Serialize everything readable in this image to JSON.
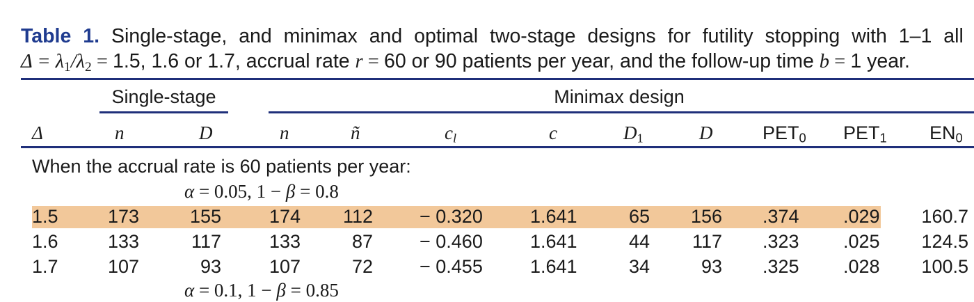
{
  "caption": {
    "label": "Table 1.",
    "line1_text": "Single-stage, and minimax and optimal two-stage designs for futility stopping with 1–1 all",
    "line2_delta": "Δ",
    "line2_eq1": " = λ",
    "line2_sub1": "1",
    "line2_slash": "/λ",
    "line2_sub2": "2",
    "line2_eq2": " = ",
    "line2_text_a": "1.5, 1.6 or 1.7, accrual rate ",
    "line2_r": "r",
    "line2_eq3": " = ",
    "line2_text_b": "60 or 90 patients per year, and the follow-up time ",
    "line2_b": "b",
    "line2_eq4": " = ",
    "line2_text_c": "1 year."
  },
  "header": {
    "group_single": "Single-stage",
    "group_minimax": "Minimax design",
    "columns": {
      "delta": "Δ",
      "n_single": "n",
      "d_single": "D",
      "n_minimax": "n",
      "ntilde": "ñ",
      "cl_base": "c",
      "cl_sub": "l",
      "c": "c",
      "d1_base": "D",
      "d1_sub": "1",
      "d": "D",
      "pet0_base": "PET",
      "pet0_sub": "0",
      "pet1_base": "PET",
      "pet1_sub": "1",
      "en0_base": "EN",
      "en0_sub": "0"
    }
  },
  "body": {
    "section_60": "When the accrual rate is 60 patients per year:",
    "condition_1": {
      "alpha": "α",
      "eq1": " = 0.05, 1 − ",
      "beta": "β",
      "eq2": " = 0.8"
    },
    "condition_2": {
      "alpha": "α",
      "eq1": " = 0.1, 1 − ",
      "beta": "β",
      "eq2": " = 0.85"
    },
    "rows": [
      {
        "delta": "1.5",
        "n_single": "173",
        "d_single": "155",
        "n_minimax": "174",
        "ntilde": "112",
        "cl": "− 0.320",
        "c": "1.641",
        "d1": "65",
        "d": "156",
        "pet0": ".374",
        "pet1": ".029",
        "en0": "160.7",
        "highlighted": true
      },
      {
        "delta": "1.6",
        "n_single": "133",
        "d_single": "117",
        "n_minimax": "133",
        "ntilde": "87",
        "cl": "− 0.460",
        "c": "1.641",
        "d1": "44",
        "d": "117",
        "pet0": ".323",
        "pet1": ".025",
        "en0": "124.5",
        "highlighted": false
      },
      {
        "delta": "1.7",
        "n_single": "107",
        "d_single": "93",
        "n_minimax": "107",
        "ntilde": "72",
        "cl": "− 0.455",
        "c": "1.641",
        "d1": "34",
        "d": "93",
        "pet0": ".325",
        "pet1": ".028",
        "en0": "100.5",
        "highlighted": false
      }
    ]
  },
  "colors": {
    "caption_label": "#1f3b8f",
    "rules": "#1f2f7a",
    "highlight_row": "#f2c89a"
  }
}
